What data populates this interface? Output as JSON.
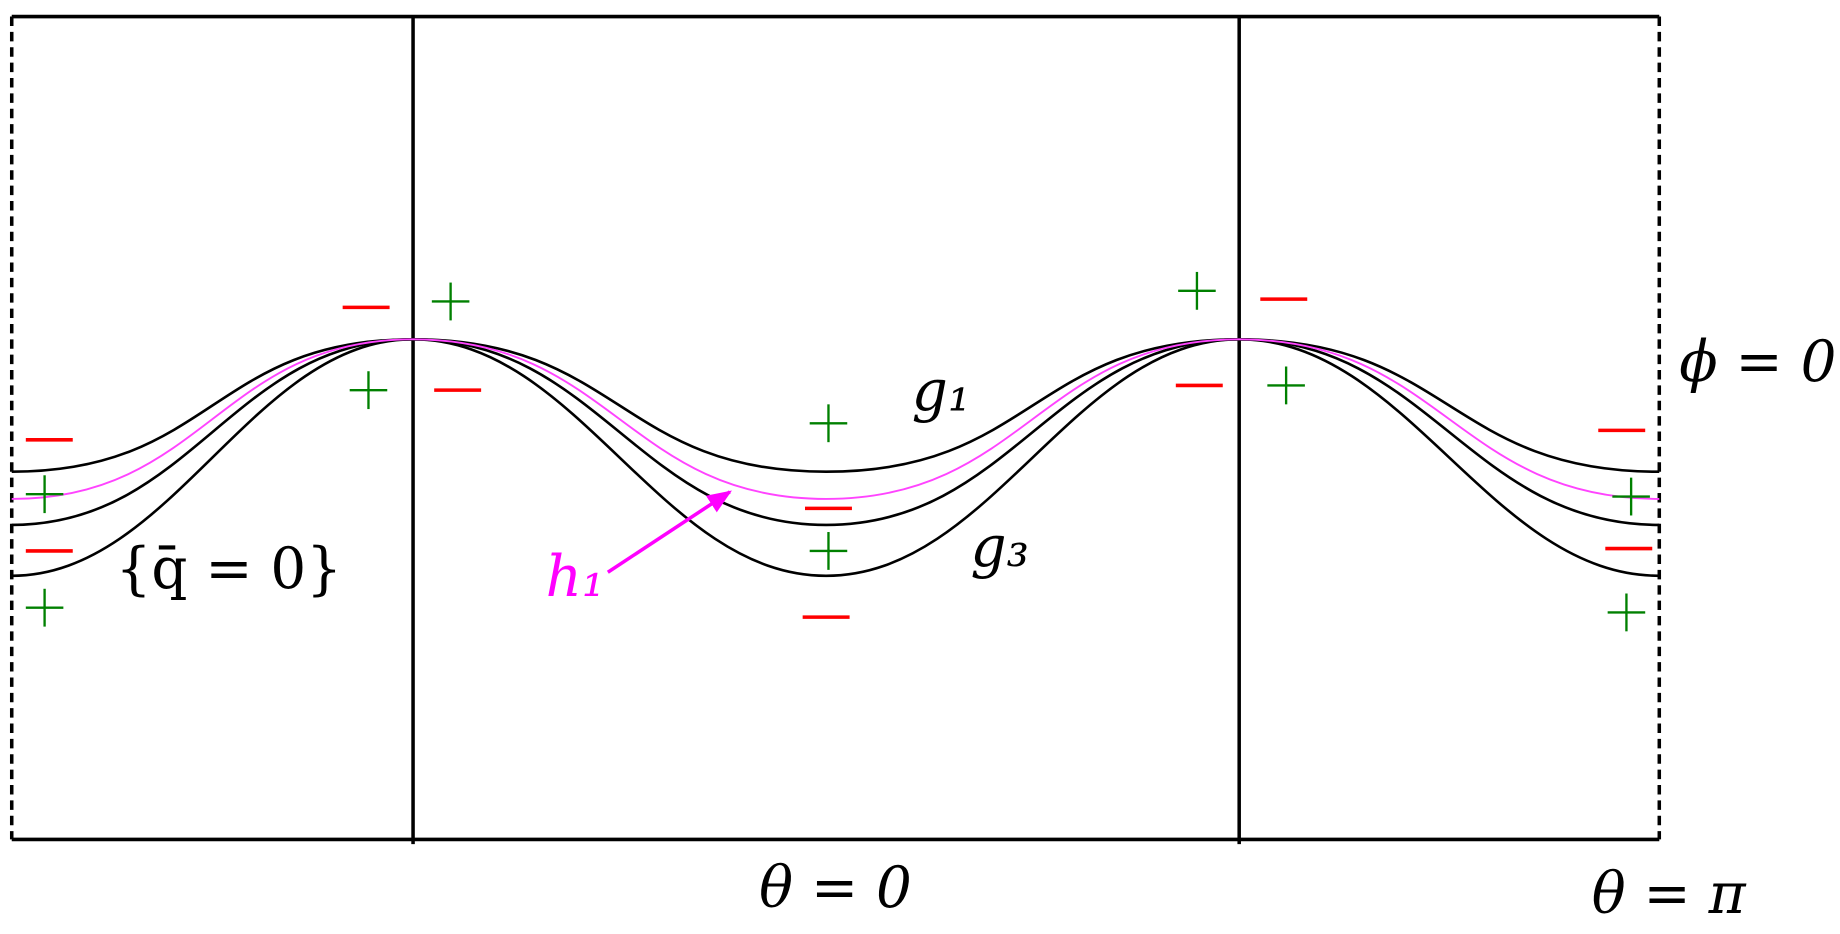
{
  "labels": {
    "phi": "ϕ = 0",
    "g1": "g₁",
    "g3": "g₃",
    "h1": "h₁",
    "qbar": "{q̄ = 0}",
    "theta0": "θ = 0",
    "thetaPi": "θ = π"
  }
}
